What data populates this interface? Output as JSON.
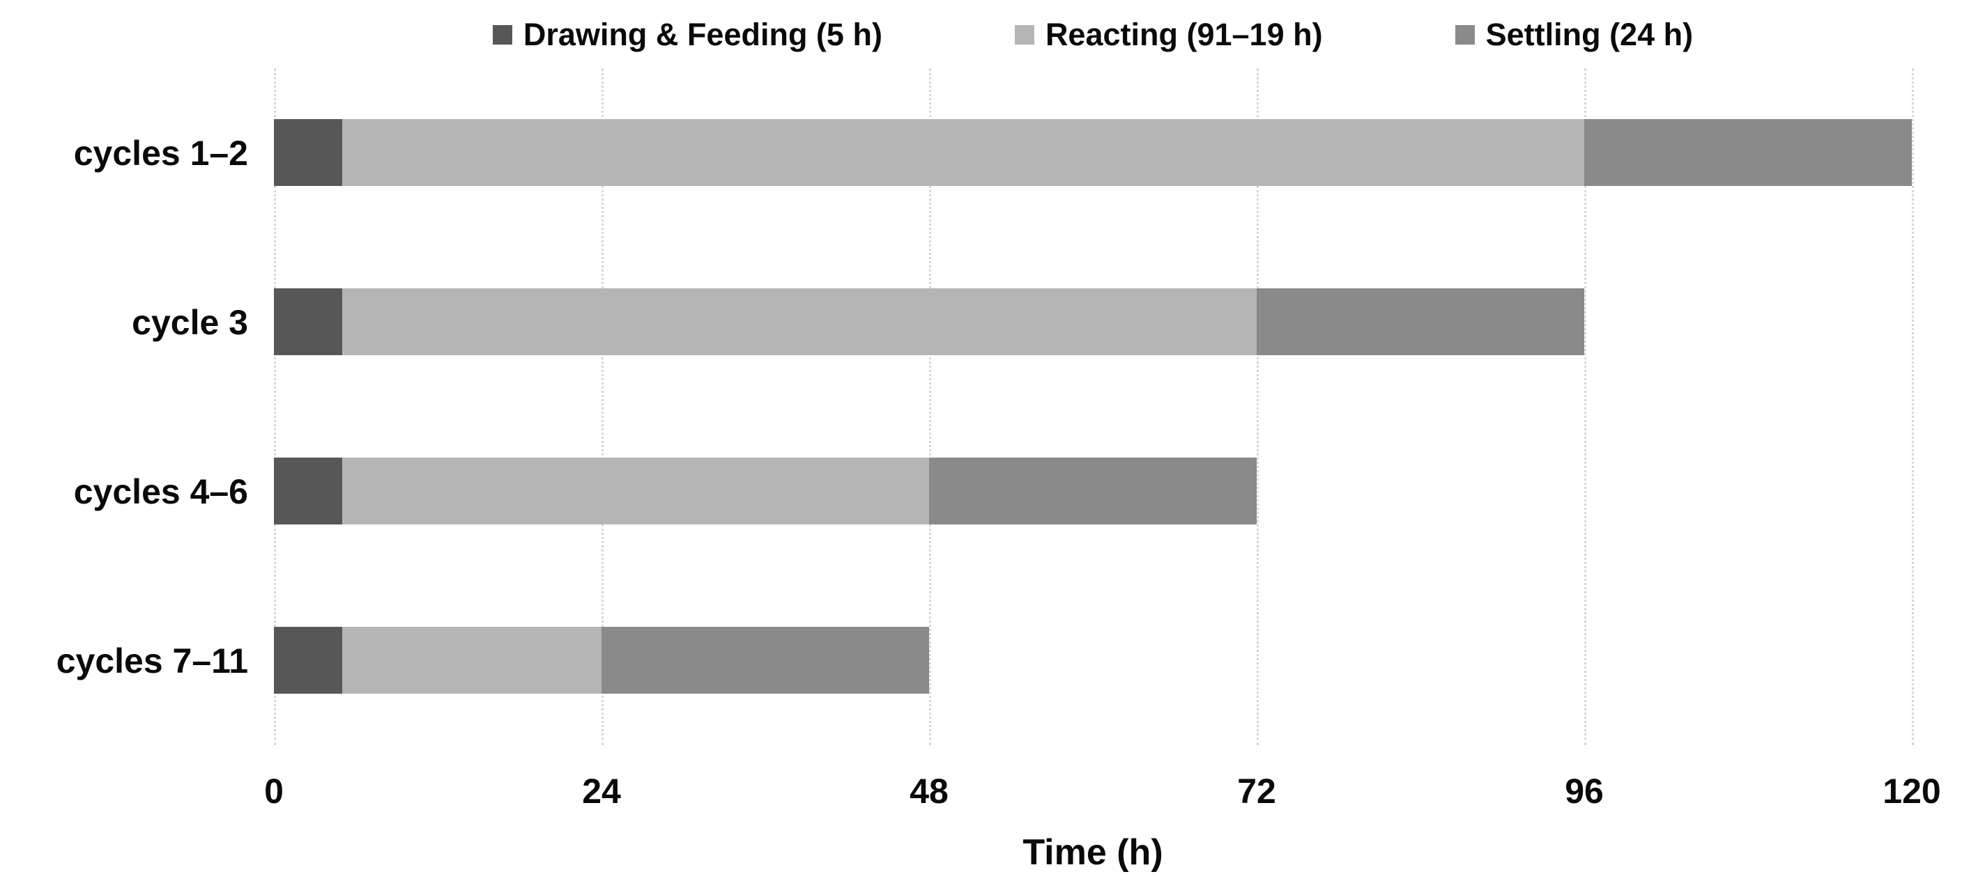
{
  "colors": {
    "drawing": "#575757",
    "reacting": "#b5b5b5",
    "settling": "#8a8a8a",
    "gridline": "#d7d7d7",
    "text": "#0a0a0a",
    "background": "#ffffff"
  },
  "chart_data": {
    "type": "bar",
    "orientation": "horizontal",
    "stacked": true,
    "title": "",
    "xlabel": "Time (h)",
    "ylabel": "",
    "xlim": [
      0,
      120
    ],
    "xticks": [
      0,
      24,
      48,
      72,
      96,
      120
    ],
    "grid": "vertical dotted gridlines at each x tick",
    "legend_position": "top center",
    "categories": [
      "cycles 1–2",
      "cycle 3",
      "cycles 4–6",
      "cycles 7–11"
    ],
    "series": [
      {
        "name": "Drawing & Feeding",
        "legend_label": "Drawing & Feeding (5 h)",
        "color_key": "drawing",
        "values": [
          5,
          5,
          5,
          5
        ]
      },
      {
        "name": "Reacting",
        "legend_label": "Reacting (91–19 h)",
        "color_key": "reacting",
        "values": [
          91,
          67,
          43,
          19
        ]
      },
      {
        "name": "Settling",
        "legend_label": "Settling (24 h)",
        "color_key": "settling",
        "values": [
          24,
          24,
          24,
          24
        ]
      }
    ],
    "row_totals": [
      120,
      96,
      72,
      48
    ]
  }
}
